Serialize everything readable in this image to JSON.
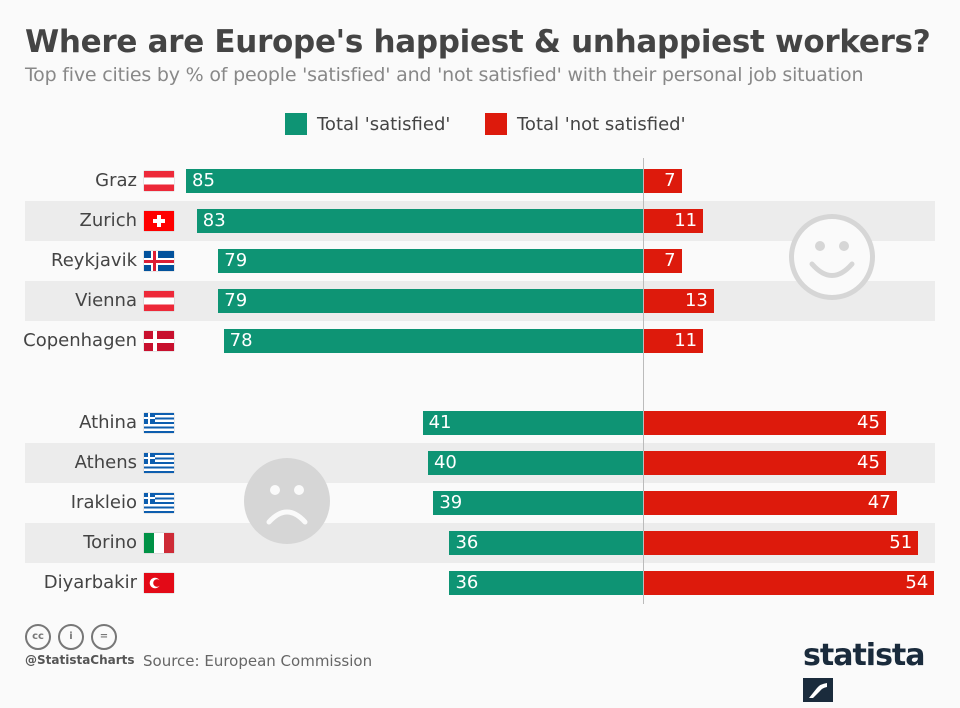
{
  "chart_data": {
    "type": "bar",
    "title": "Where are Europe's happiest & unhappiest workers?",
    "subtitle": "Top five cities by % of people 'satisfied' and 'not satisfied' with their personal job situation",
    "legend": [
      {
        "name": "Total 'satisfied'",
        "color": "#0e9474"
      },
      {
        "name": "Total 'not satisfied'",
        "color": "#dd1a0c"
      }
    ],
    "groups": [
      {
        "icon": "smiley-face-icon",
        "rows": [
          {
            "city": "Graz",
            "flag": "austria",
            "satisfied": 85,
            "not_satisfied": 7
          },
          {
            "city": "Zurich",
            "flag": "switzerland",
            "satisfied": 83,
            "not_satisfied": 11
          },
          {
            "city": "Reykjavik",
            "flag": "iceland",
            "satisfied": 79,
            "not_satisfied": 7
          },
          {
            "city": "Vienna",
            "flag": "austria",
            "satisfied": 79,
            "not_satisfied": 13
          },
          {
            "city": "Copenhagen",
            "flag": "denmark",
            "satisfied": 78,
            "not_satisfied": 11
          }
        ]
      },
      {
        "icon": "sad-face-icon",
        "rows": [
          {
            "city": "Athina",
            "flag": "greece",
            "satisfied": 41,
            "not_satisfied": 45
          },
          {
            "city": "Athens",
            "flag": "greece",
            "satisfied": 40,
            "not_satisfied": 45
          },
          {
            "city": "Irakleio",
            "flag": "greece",
            "satisfied": 39,
            "not_satisfied": 47
          },
          {
            "city": "Torino",
            "flag": "italy",
            "satisfied": 36,
            "not_satisfied": 51
          },
          {
            "city": "Diyarbakir",
            "flag": "turkey",
            "satisfied": 36,
            "not_satisfied": 54
          }
        ]
      }
    ]
  },
  "footer": {
    "handle": "@StatistaCharts",
    "source": "Source: European Commission",
    "logo": "statista",
    "license_icons": [
      "cc",
      "by",
      "nd"
    ]
  }
}
